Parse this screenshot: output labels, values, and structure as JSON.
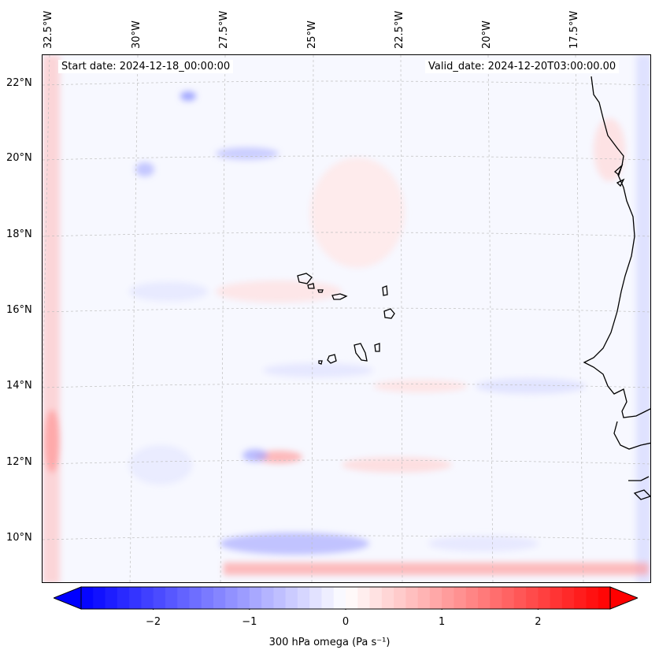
{
  "map": {
    "start_date": "Start date: 2024-12-18_00:00:00",
    "valid_date": "Valid_date: 2024-12-20T03:00:00.00",
    "lon_labels": [
      "32.5°W",
      "30°W",
      "27.5°W",
      "25°W",
      "22.5°W",
      "20°W",
      "17.5°W"
    ],
    "lat_labels": [
      "22°N",
      "20°N",
      "18°N",
      "16°N",
      "14°N",
      "12°N",
      "10°N"
    ],
    "lon_values": [
      -32.5,
      -30,
      -27.5,
      -25,
      -22.5,
      -20,
      -17.5
    ],
    "lat_values": [
      22,
      20,
      18,
      16,
      14,
      12,
      10
    ],
    "land_outlines": [
      "Cape Verde islands",
      "West African coast"
    ]
  },
  "colorbar": {
    "label": "300 hPa omega (Pa s⁻¹)",
    "ticks": [
      "−2",
      "−1",
      "0",
      "1",
      "2"
    ],
    "tick_values": [
      -2,
      -1,
      0,
      1,
      2
    ],
    "range": [
      -2.75,
      2.75
    ],
    "cmap": "bwr",
    "colors": {
      "negative": "#0000ff",
      "zero": "#ffffff",
      "positive": "#ff0000"
    }
  }
}
